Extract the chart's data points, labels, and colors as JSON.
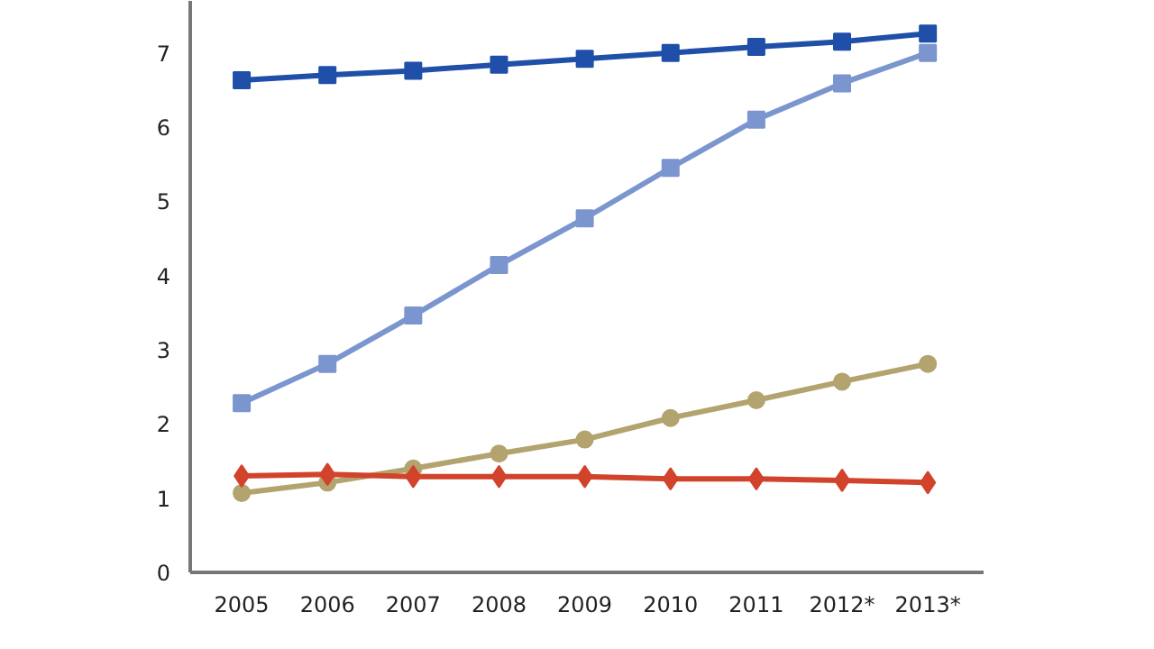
{
  "chart_data": {
    "type": "line",
    "categories": [
      "2005",
      "2006",
      "2007",
      "2008",
      "2009",
      "2010",
      "2011",
      "2012*",
      "2013*"
    ],
    "ylim": [
      0,
      7.7
    ],
    "yticks": [
      0,
      1,
      2,
      3,
      4,
      5,
      6,
      7
    ],
    "grid": false,
    "series": [
      {
        "color": "#1f4fa8",
        "marker": "square",
        "values": [
          6.63,
          6.7,
          6.76,
          6.84,
          6.92,
          7.0,
          7.08,
          7.15,
          7.26
        ]
      },
      {
        "color": "#7b95cf",
        "marker": "square",
        "values": [
          2.28,
          2.81,
          3.46,
          4.14,
          4.77,
          5.45,
          6.1,
          6.59,
          7.0
        ]
      },
      {
        "color": "#b3a36e",
        "marker": "circle",
        "values": [
          1.07,
          1.21,
          1.4,
          1.6,
          1.79,
          2.08,
          2.32,
          2.57,
          2.81
        ]
      },
      {
        "color": "#d2432b",
        "marker": "diamond",
        "values": [
          1.3,
          1.32,
          1.29,
          1.29,
          1.29,
          1.26,
          1.26,
          1.24,
          1.21
        ]
      }
    ]
  }
}
